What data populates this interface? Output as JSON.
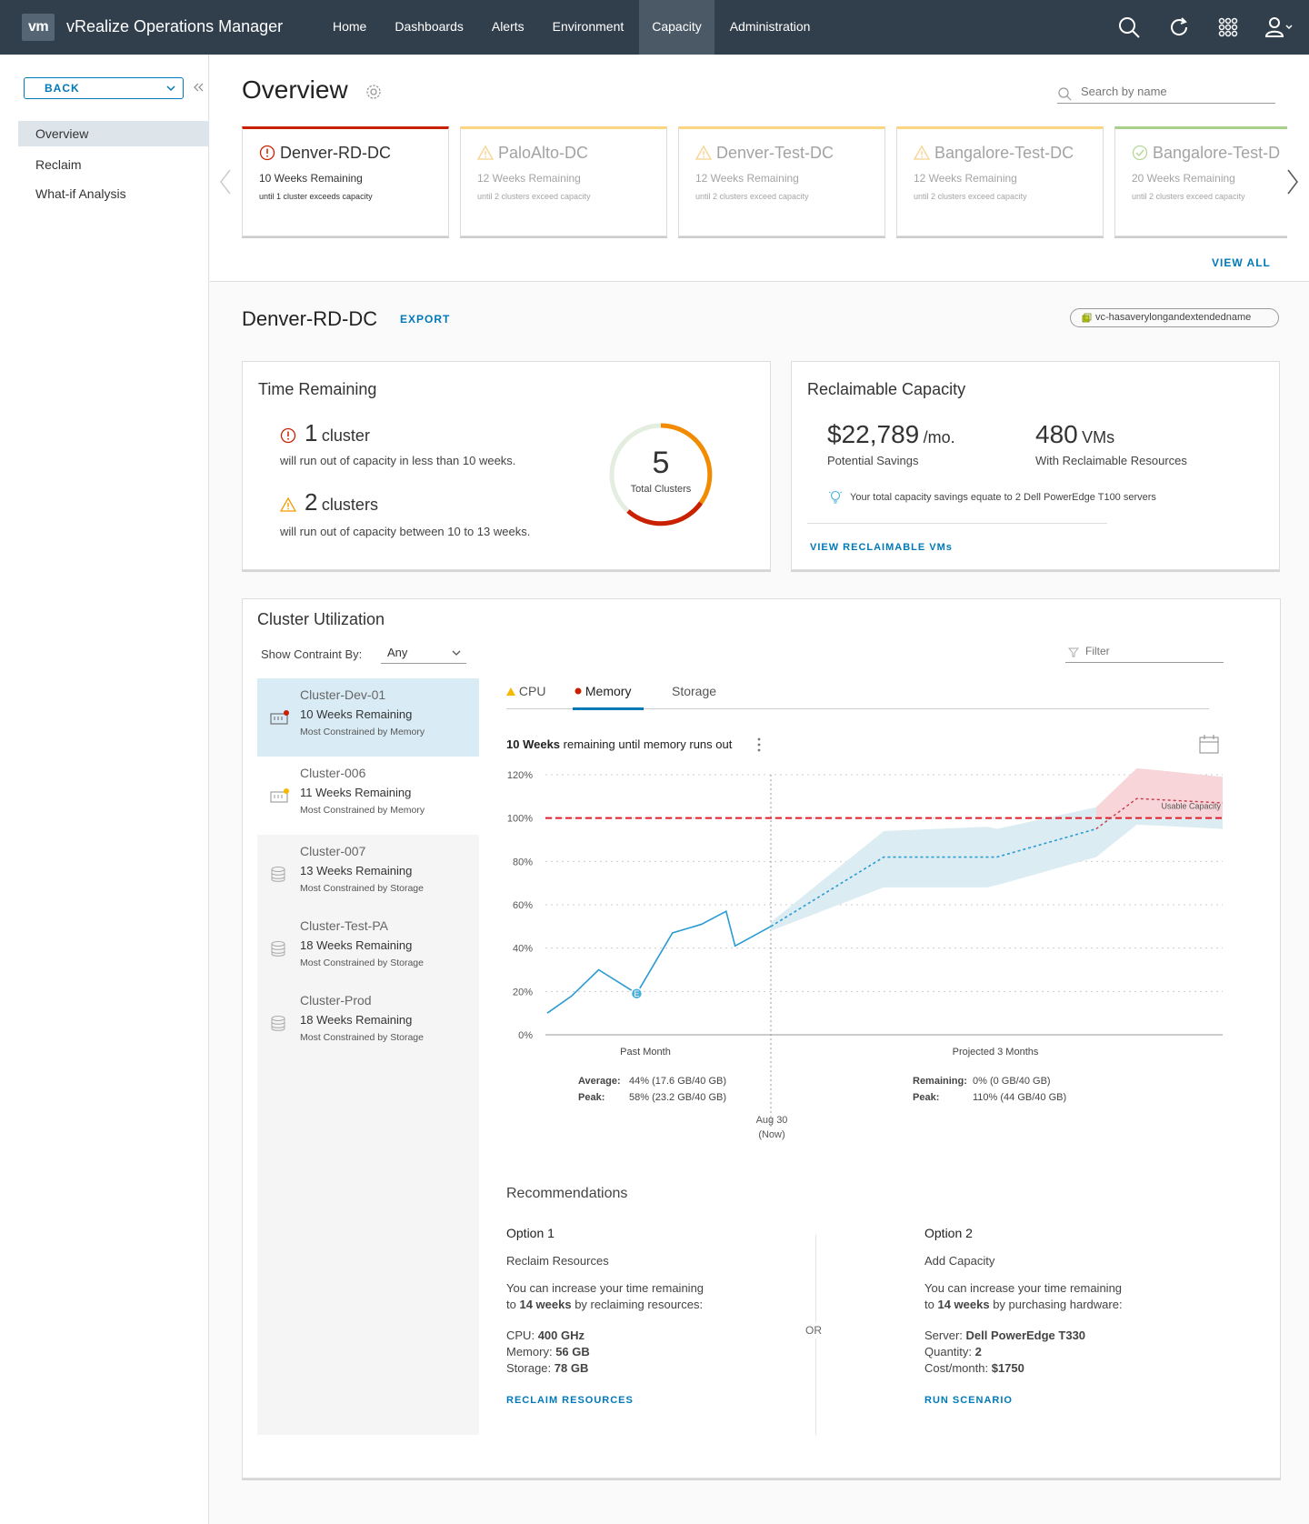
{
  "header": {
    "logo": "vm",
    "app_title": "vRealize Operations Manager",
    "nav": [
      "Home",
      "Dashboards",
      "Alerts",
      "Environment",
      "Capacity",
      "Administration"
    ],
    "active_nav": "Capacity",
    "icons": [
      "search-icon",
      "refresh-icon",
      "apps-grid-icon",
      "user-icon"
    ]
  },
  "sidebar": {
    "back_label": "BACK",
    "items": [
      "Overview",
      "Reclaim",
      "What-if Analysis"
    ],
    "active": "Overview"
  },
  "overview": {
    "title": "Overview",
    "search_placeholder": "Search by name",
    "view_all": "VIEW ALL",
    "datacenters": [
      {
        "name": "Denver-RD-DC",
        "weeks": "10 Weeks Remaining",
        "until": "until 1 cluster exceeds capacity",
        "status": "critical",
        "color": "#c92100"
      },
      {
        "name": "PaloAlto-DC",
        "weeks": "12 Weeks Remaining",
        "until": "until 2 clusters exceed capacity",
        "status": "warning",
        "color": "#f8b700"
      },
      {
        "name": "Denver-Test-DC",
        "weeks": "12 Weeks Remaining",
        "until": "until 2 clusters exceed capacity",
        "status": "warning",
        "color": "#f8b700"
      },
      {
        "name": "Bangalore-Test-DC",
        "weeks": "12 Weeks Remaining",
        "until": "until 2 clusters exceed capacity",
        "status": "warning",
        "color": "#f8b700"
      },
      {
        "name": "Bangalore-Test-D",
        "weeks": "20 Weeks Remaining",
        "until": "until 2 clusters exceed capacity",
        "status": "ok",
        "color": "#62a420"
      }
    ]
  },
  "detail": {
    "title": "Denver-RD-DC",
    "export": "EXPORT",
    "vc_tag": "vc-hasaverylongandextendedname"
  },
  "time_remaining": {
    "title": "Time Remaining",
    "critical_count": "1",
    "critical_unit": "cluster",
    "critical_desc": "will run out of capacity in less than 10 weeks.",
    "warning_count": "2",
    "warning_unit": "clusters",
    "warning_desc": "will run out of capacity between 10 to 13 weeks.",
    "total": "5",
    "total_label": "Total Clusters"
  },
  "reclaimable": {
    "title": "Reclaimable Capacity",
    "savings": "$22,789",
    "savings_unit": "/mo.",
    "savings_label": "Potential Savings",
    "vms": "480",
    "vms_unit": "VMs",
    "vms_label": "With Reclaimable Resources",
    "tip": "Your total capacity savings equate to 2 Dell PowerEdge T100 servers",
    "link": "VIEW RECLAIMABLE VMs"
  },
  "utilization": {
    "title": "Cluster Utilization",
    "constraint_label": "Show Contraint By:",
    "constraint_value": "Any",
    "filter_placeholder": "Filter",
    "clusters": [
      {
        "name": "Cluster-Dev-01",
        "weeks": "10 Weeks Remaining",
        "constraint": "Most Constrained by Memory",
        "dot": "#c92100"
      },
      {
        "name": "Cluster-006",
        "weeks": "11 Weeks Remaining",
        "constraint": "Most Constrained by Memory",
        "dot": "#f8b700"
      },
      {
        "name": "Cluster-007",
        "weeks": "13 Weeks Remaining",
        "constraint": "Most Constrained by Storage",
        "dot": ""
      },
      {
        "name": "Cluster-Test-PA",
        "weeks": "18 Weeks Remaining",
        "constraint": "Most Constrained by Storage",
        "dot": ""
      },
      {
        "name": "Cluster-Prod",
        "weeks": "18 Weeks Remaining",
        "constraint": "Most Constrained by Storage",
        "dot": ""
      }
    ],
    "tabs": [
      "CPU",
      "Memory",
      "Storage"
    ],
    "active_tab": "Memory",
    "headline_bold": "10 Weeks",
    "headline_rest": "remaining until memory runs out",
    "past_label": "Past Month",
    "projected_label": "Projected 3 Months",
    "now_label": "Aug 30",
    "now_sub": "(Now)",
    "usable_label": "Usable Capacity",
    "event_marker": "E",
    "past_stats": [
      {
        "label": "Average:",
        "value": "44% (17.6 GB/40 GB)"
      },
      {
        "label": "Peak:",
        "value": "58% (23.2 GB/40 GB)"
      }
    ],
    "proj_stats": [
      {
        "label": "Remaining:",
        "value": "0% (0 GB/40 GB)"
      },
      {
        "label": "Peak:",
        "value": "110% (44 GB/40 GB)"
      }
    ]
  },
  "chart_data": {
    "type": "line",
    "ylim": [
      0,
      120
    ],
    "yticks": [
      "0%",
      "20%",
      "40%",
      "60%",
      "80%",
      "100%",
      "120%"
    ],
    "usable_capacity": 100,
    "series": [
      {
        "name": "Past Month",
        "values": [
          10,
          18,
          30,
          19,
          47,
          51,
          57,
          41,
          50
        ]
      },
      {
        "name": "Projected 3 Months",
        "values": [
          50,
          82,
          82,
          82,
          95,
          109,
          107
        ]
      }
    ]
  },
  "recommendations": {
    "title": "Recommendations",
    "or": "OR",
    "options": [
      {
        "label": "Option 1",
        "subtitle": "Reclaim Resources",
        "line1": "You can increase your time remaining",
        "line2_pre": "to",
        "line2_bold": "14 weeks",
        "line2_post": "by reclaiming resources:",
        "items": [
          {
            "k": "CPU:",
            "v": "400 GHz"
          },
          {
            "k": "Memory:",
            "v": "56 GB"
          },
          {
            "k": "Storage:",
            "v": "78 GB"
          }
        ],
        "action": "RECLAIM RESOURCES"
      },
      {
        "label": "Option 2",
        "subtitle": "Add Capacity",
        "line1": "You can increase your time remaining",
        "line2_pre": "to",
        "line2_bold": "14 weeks",
        "line2_post": "by purchasing hardware:",
        "items": [
          {
            "k": "Server:",
            "v": "Dell PowerEdge T330"
          },
          {
            "k": "Quantity:",
            "v": "2"
          },
          {
            "k": "Cost/month:",
            "v": "$1750"
          }
        ],
        "action": "RUN SCENARIO"
      }
    ]
  }
}
